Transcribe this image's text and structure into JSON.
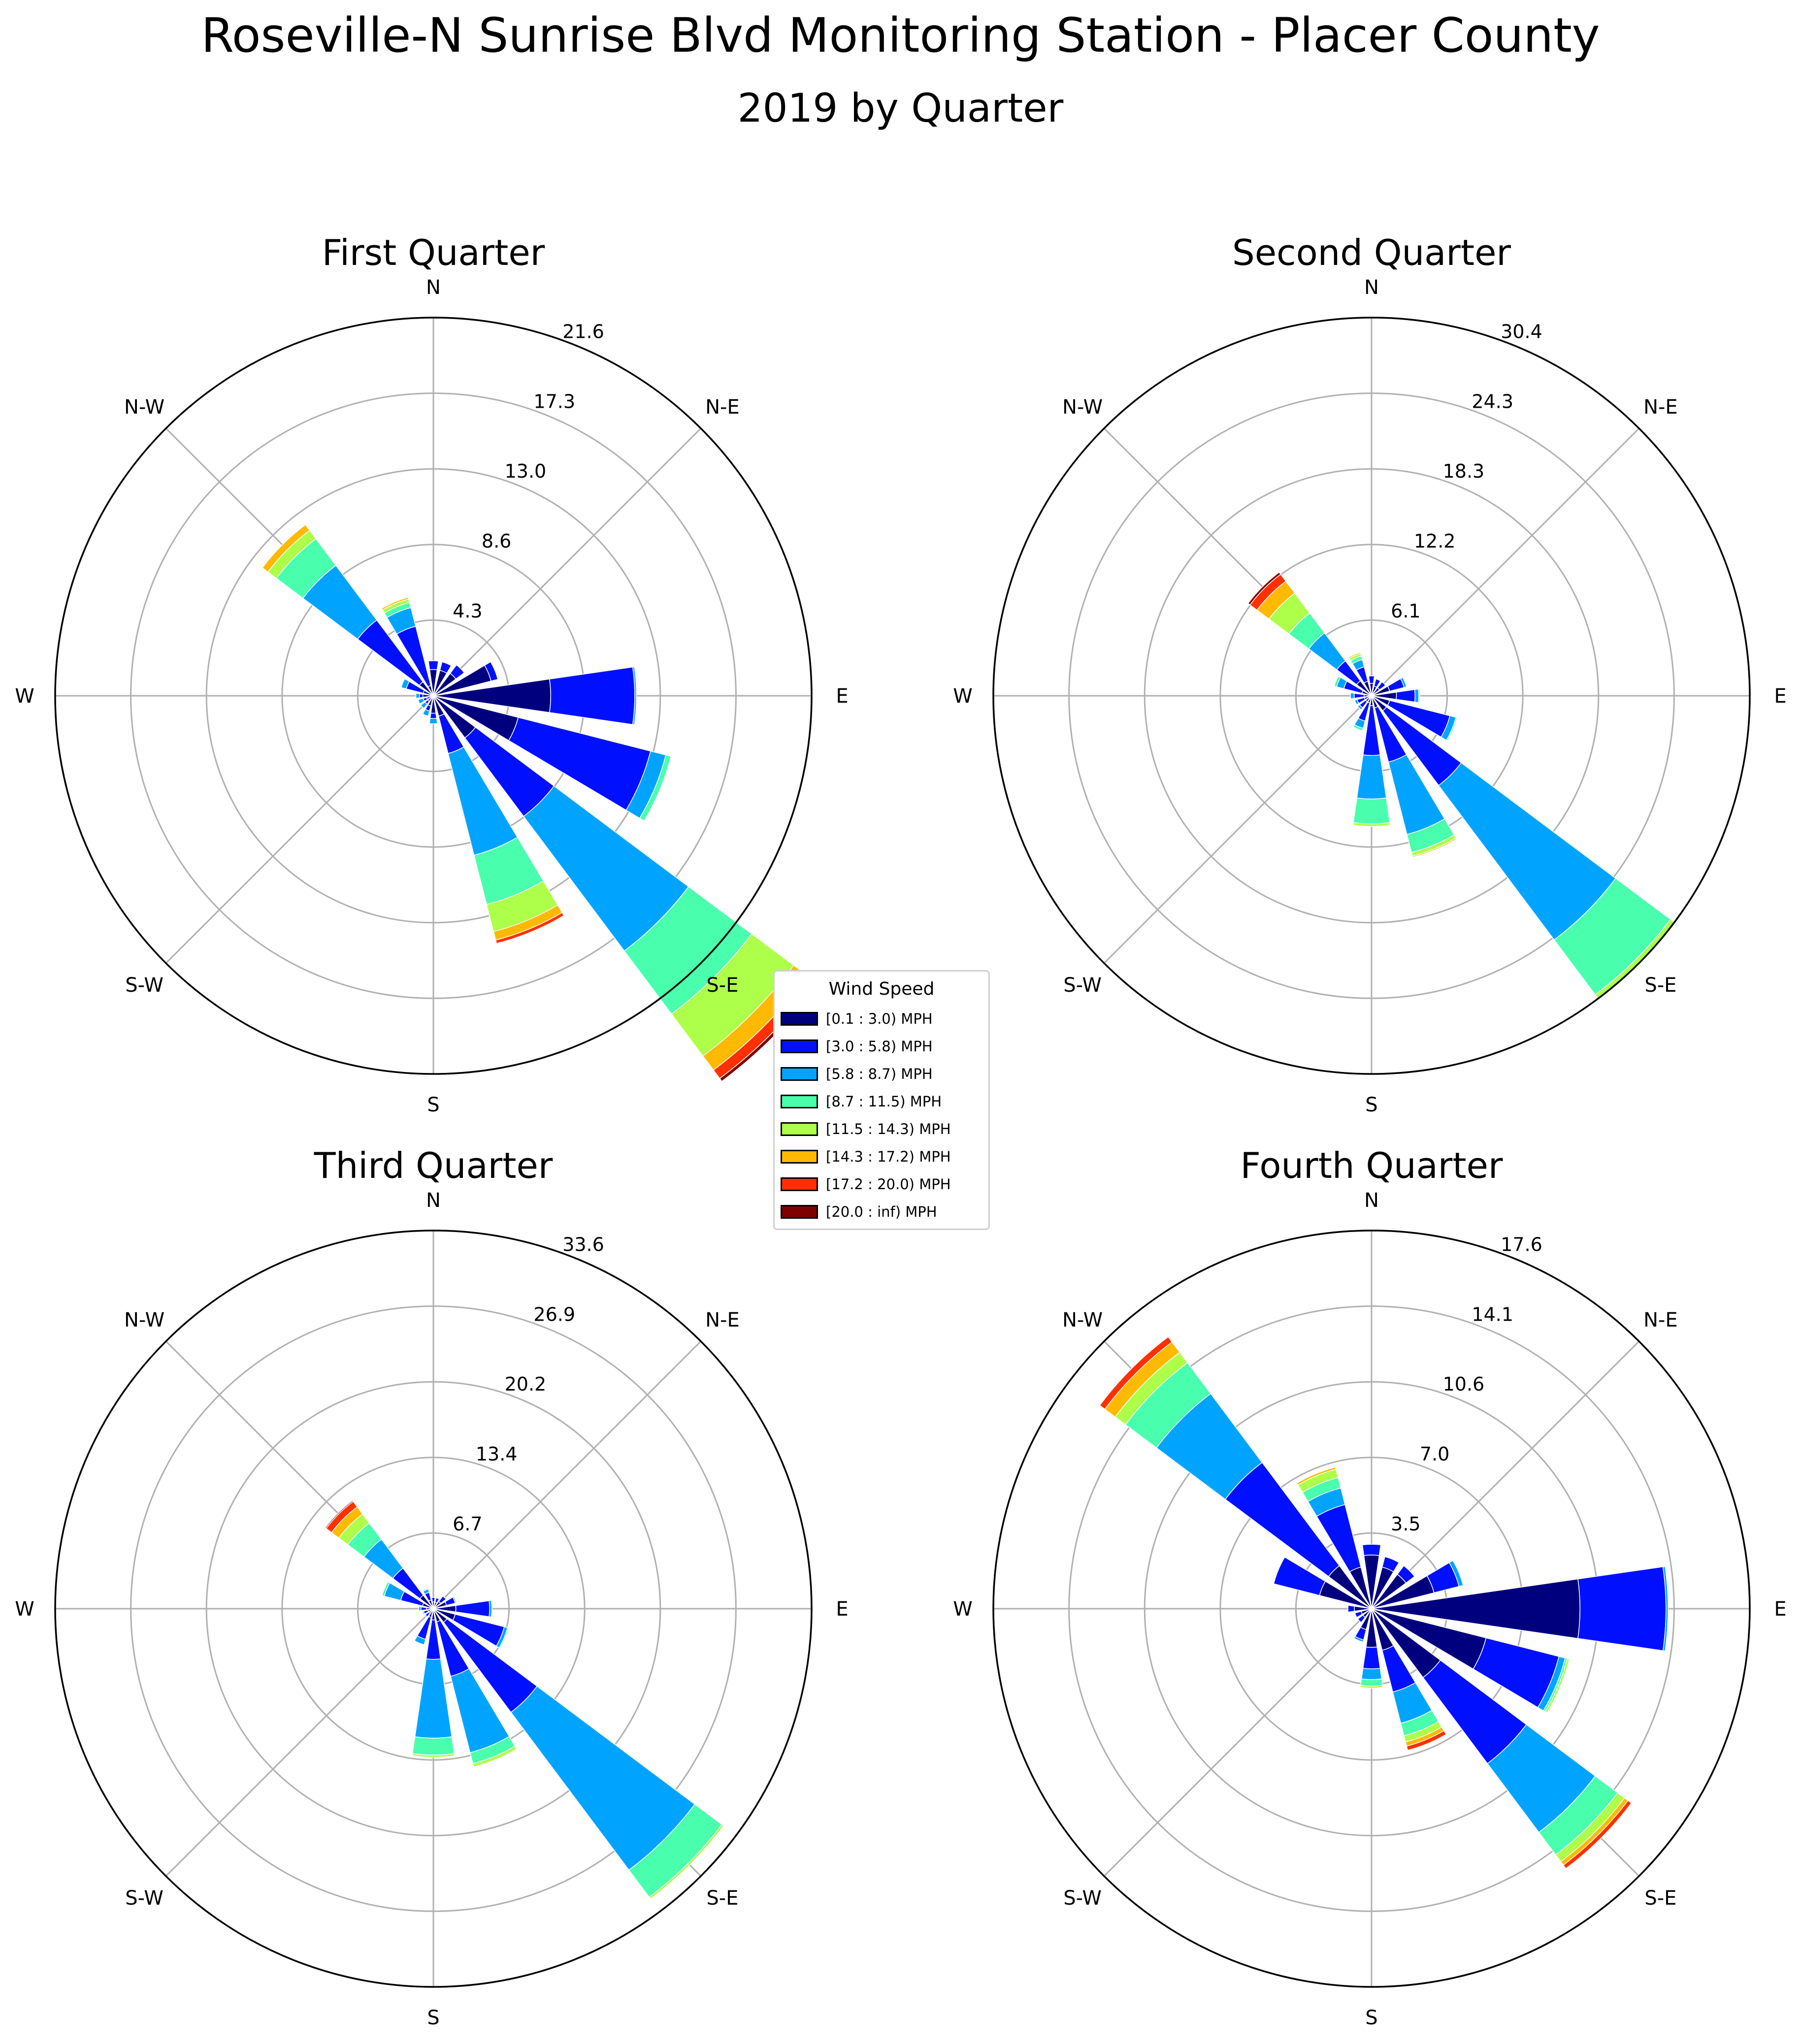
{
  "title": "Roseville-N Sunrise Blvd Monitoring Station - Placer County",
  "subtitle": "2019 by Quarter",
  "legend": {
    "title": "Wind Speed",
    "entries": [
      {
        "label": "[0.1 : 3.0) MPH",
        "color": "#00007f"
      },
      {
        "label": "[3.0 : 5.8) MPH",
        "color": "#0010ff"
      },
      {
        "label": "[5.8 : 8.7) MPH",
        "color": "#00a4ff"
      },
      {
        "label": "[8.7 : 11.5) MPH",
        "color": "#49ffad"
      },
      {
        "label": "[11.5 : 14.3) MPH",
        "color": "#adff49"
      },
      {
        "label": "[14.3 : 17.2) MPH",
        "color": "#ffb900"
      },
      {
        "label": "[17.2 : 20.0) MPH",
        "color": "#ff3000"
      },
      {
        "label": "[20.0 : inf) MPH",
        "color": "#7f0000"
      }
    ]
  },
  "chart_data": [
    {
      "type": "windrose",
      "title": "First Quarter",
      "directions": [
        "N",
        "NNE",
        "NE",
        "ENE",
        "E",
        "ESE",
        "SE",
        "SSE",
        "S",
        "SSW",
        "SW",
        "WSW",
        "W",
        "WNW",
        "NW",
        "NNW"
      ],
      "compass_labels": [
        "N",
        "N-E",
        "E",
        "S-E",
        "S",
        "S-W",
        "W",
        "N-W"
      ],
      "radial_ticks": [
        "4.3",
        "8.6",
        "13.0",
        "17.3",
        "21.6"
      ],
      "rmax": 21.6,
      "series": [
        {
          "name": "[0.1 : 3.0) MPH",
          "values": [
            1.5,
            1.5,
            1.6,
            3.4,
            6.7,
            5.0,
            3.0,
            1.2,
            1.0,
            0.6,
            0.4,
            0.4,
            0.6,
            0.6,
            1.0,
            0.6
          ]
        },
        {
          "name": "[3.0 : 5.8) MPH",
          "values": [
            0.5,
            0.5,
            0.6,
            0.4,
            4.8,
            7.8,
            5.6,
            2.2,
            0.3,
            0.3,
            0.2,
            0.2,
            0.2,
            1.0,
            4.4,
            3.5
          ]
        },
        {
          "name": "[5.8 : 8.7) MPH",
          "values": [
            0,
            0,
            0,
            0,
            0.1,
            0.9,
            9.6,
            6.0,
            0.3,
            0.3,
            0.3,
            0.3,
            0.2,
            0.3,
            3.9,
            1.1
          ]
        },
        {
          "name": "[8.7 : 11.5) MPH",
          "values": [
            0,
            0,
            0,
            0,
            0,
            0.3,
            4.5,
            2.9,
            0,
            0,
            0,
            0,
            0,
            0,
            1.9,
            0.3
          ]
        },
        {
          "name": "[11.5 : 14.3) MPH",
          "values": [
            0,
            0,
            0,
            0,
            0,
            0,
            3.0,
            1.6,
            0,
            0,
            0,
            0,
            0,
            0,
            0.6,
            0.2
          ]
        },
        {
          "name": "[14.3 : 17.2) MPH",
          "values": [
            0,
            0,
            0,
            0,
            0,
            0,
            1.0,
            0.5,
            0,
            0,
            0,
            0,
            0,
            0,
            0.4,
            0.1
          ]
        },
        {
          "name": "[17.2 : 20.0) MPH",
          "values": [
            0,
            0,
            0,
            0,
            0,
            0,
            0.6,
            0.2,
            0,
            0,
            0,
            0,
            0,
            0,
            0,
            0
          ]
        },
        {
          "name": "[20.0 : inf) MPH",
          "values": [
            0,
            0,
            0,
            0,
            0,
            0,
            0.2,
            0,
            0,
            0,
            0,
            0,
            0,
            0,
            0,
            0
          ]
        }
      ]
    },
    {
      "type": "windrose",
      "title": "Second Quarter",
      "directions": [
        "N",
        "NNE",
        "NE",
        "ENE",
        "E",
        "ESE",
        "SE",
        "SSE",
        "S",
        "SSW",
        "SW",
        "WSW",
        "W",
        "WNW",
        "NW",
        "NNW"
      ],
      "compass_labels": [
        "N",
        "N-E",
        "E",
        "S-E",
        "S",
        "S-W",
        "W",
        "N-W"
      ],
      "radial_ticks": [
        "6.1",
        "12.2",
        "18.3",
        "24.3",
        "30.4"
      ],
      "rmax": 30.4,
      "series": [
        {
          "name": "[0.1 : 3.0) MPH",
          "values": [
            1.0,
            0.8,
            0.8,
            1.5,
            2.0,
            1.5,
            1.5,
            1.0,
            0.8,
            0.6,
            0.6,
            0.6,
            0.6,
            0.8,
            1.5,
            1.2
          ]
        },
        {
          "name": "[3.0 : 5.8) MPH",
          "values": [
            0.6,
            0.6,
            0.6,
            1.2,
            1.5,
            5.0,
            7.5,
            4.5,
            4.0,
            1.5,
            0.6,
            0.6,
            0.8,
            1.5,
            2.0,
            1.2
          ]
        },
        {
          "name": "[5.8 : 8.7) MPH",
          "values": [
            0,
            0,
            0,
            0.2,
            0.3,
            0.5,
            15.5,
            6.0,
            3.5,
            0.6,
            0.2,
            0.2,
            0.3,
            0.6,
            2.8,
            0.6
          ]
        },
        {
          "name": "[8.7 : 11.5) MPH",
          "values": [
            0,
            0,
            0,
            0,
            0.1,
            0.1,
            5.5,
            1.5,
            2.0,
            0.2,
            0,
            0,
            0,
            0.2,
            2.0,
            0.3
          ]
        },
        {
          "name": "[11.5 : 14.3) MPH",
          "values": [
            0,
            0,
            0,
            0,
            0,
            0,
            0.5,
            0.3,
            0.2,
            0,
            0,
            0,
            0,
            0,
            2.0,
            0.2
          ]
        },
        {
          "name": "[14.3 : 17.2) MPH",
          "values": [
            0,
            0,
            0,
            0,
            0,
            0,
            0,
            0.1,
            0,
            0,
            0,
            0,
            0,
            0,
            1.2,
            0.1
          ]
        },
        {
          "name": "[17.2 : 20.0) MPH",
          "values": [
            0,
            0,
            0,
            0,
            0,
            0,
            0,
            0,
            0,
            0,
            0,
            0,
            0,
            0,
            0.7,
            0
          ]
        },
        {
          "name": "[20.0 : inf) MPH",
          "values": [
            0,
            0,
            0,
            0,
            0,
            0,
            0,
            0,
            0,
            0,
            0,
            0,
            0,
            0,
            0.2,
            0
          ]
        }
      ]
    },
    {
      "type": "windrose",
      "title": "Third Quarter",
      "directions": [
        "N",
        "NNE",
        "NE",
        "ENE",
        "E",
        "ESE",
        "SE",
        "SSE",
        "S",
        "SSW",
        "SW",
        "WSW",
        "W",
        "WNW",
        "NW",
        "NNW"
      ],
      "compass_labels": [
        "N",
        "N-E",
        "E",
        "S-E",
        "S",
        "S-W",
        "W",
        "N-W"
      ],
      "radial_ticks": [
        "6.7",
        "13.4",
        "20.2",
        "26.9",
        "33.6"
      ],
      "rmax": 33.6,
      "series": [
        {
          "name": "[0.1 : 3.0) MPH",
          "values": [
            0.6,
            0.6,
            0.8,
            1.2,
            2.0,
            2.0,
            1.5,
            1.2,
            1.0,
            0.8,
            0.5,
            0.5,
            0.6,
            1.0,
            1.5,
            0.8
          ]
        },
        {
          "name": "[3.0 : 5.8) MPH",
          "values": [
            0.4,
            0.4,
            0.6,
            0.8,
            3.0,
            4.5,
            10.0,
            5.0,
            3.5,
            2.0,
            0.4,
            0.4,
            0.5,
            2.0,
            3.0,
            0.7
          ]
        },
        {
          "name": "[5.8 : 8.7) MPH",
          "values": [
            0,
            0,
            0,
            0.1,
            0.2,
            0.3,
            17.5,
            7.0,
            7.0,
            0.5,
            0.1,
            0.1,
            0.2,
            1.5,
            3.2,
            0.3
          ]
        },
        {
          "name": "[8.7 : 11.5) MPH",
          "values": [
            0,
            0,
            0,
            0,
            0,
            0.1,
            3.0,
            1.0,
            1.5,
            0,
            0,
            0,
            0,
            0.2,
            1.8,
            0.1
          ]
        },
        {
          "name": "[11.5 : 14.3) MPH",
          "values": [
            0,
            0,
            0,
            0,
            0,
            0,
            0.2,
            0.3,
            0.2,
            0,
            0,
            0,
            0,
            0,
            1.0,
            0
          ]
        },
        {
          "name": "[14.3 : 17.2) MPH",
          "values": [
            0,
            0,
            0,
            0,
            0,
            0,
            0,
            0,
            0,
            0,
            0,
            0,
            0,
            0,
            0.8,
            0
          ]
        },
        {
          "name": "[17.2 : 20.0) MPH",
          "values": [
            0,
            0,
            0,
            0,
            0,
            0,
            0,
            0,
            0,
            0,
            0,
            0,
            0,
            0,
            0.6,
            0
          ]
        },
        {
          "name": "[20.0 : inf) MPH",
          "values": [
            0,
            0,
            0,
            0,
            0,
            0,
            0,
            0,
            0,
            0,
            0,
            0,
            0,
            0,
            0.1,
            0
          ]
        }
      ]
    },
    {
      "type": "windrose",
      "title": "Fourth Quarter",
      "directions": [
        "N",
        "NNE",
        "NE",
        "ENE",
        "E",
        "ESE",
        "SE",
        "SSE",
        "S",
        "SSW",
        "SW",
        "WSW",
        "W",
        "WNW",
        "NW",
        "NNW"
      ],
      "compass_labels": [
        "N",
        "N-E",
        "E",
        "S-E",
        "S",
        "S-W",
        "W",
        "N-W"
      ],
      "radial_ticks": [
        "3.5",
        "7.0",
        "10.6",
        "14.1",
        "17.6"
      ],
      "rmax": 17.6,
      "series": [
        {
          "name": "[0.1 : 3.0) MPH",
          "values": [
            2.5,
            2.0,
            2.0,
            3.0,
            9.7,
            5.5,
            4.0,
            2.0,
            1.8,
            1.0,
            0.5,
            0.5,
            0.8,
            2.5,
            2.5,
            2.0
          ]
        },
        {
          "name": "[3.0 : 5.8) MPH",
          "values": [
            0.5,
            0.5,
            0.5,
            1.2,
            4.0,
            3.5,
            5.0,
            2.0,
            1.0,
            0.5,
            0.3,
            0.3,
            0.3,
            2.2,
            6.0,
            3.0
          ]
        },
        {
          "name": "[5.8 : 8.7) MPH",
          "values": [
            0,
            0,
            0,
            0.2,
            0.1,
            0.3,
            4.0,
            1.5,
            0.5,
            0.1,
            0,
            0,
            0,
            0,
            4.0,
            0.8
          ]
        },
        {
          "name": "[8.7 : 11.5) MPH",
          "values": [
            0,
            0,
            0,
            0,
            0,
            0.1,
            1.3,
            0.6,
            0.3,
            0,
            0,
            0,
            0,
            0,
            1.8,
            0.5
          ]
        },
        {
          "name": "[11.5 : 14.3) MPH",
          "values": [
            0,
            0,
            0,
            0,
            0,
            0.1,
            0.4,
            0.3,
            0.1,
            0,
            0,
            0,
            0,
            0,
            0.6,
            0.4
          ]
        },
        {
          "name": "[14.3 : 17.2) MPH",
          "values": [
            0,
            0,
            0,
            0,
            0,
            0,
            0.2,
            0.2,
            0,
            0,
            0,
            0,
            0,
            0,
            0.6,
            0.1
          ]
        },
        {
          "name": "[17.2 : 20.0) MPH",
          "values": [
            0,
            0,
            0,
            0,
            0,
            0,
            0.2,
            0.2,
            0,
            0,
            0,
            0,
            0,
            0,
            0.3,
            0
          ]
        },
        {
          "name": "[20.0 : inf) MPH",
          "values": [
            0,
            0,
            0,
            0,
            0,
            0,
            0,
            0,
            0,
            0,
            0,
            0,
            0,
            0,
            0,
            0
          ]
        }
      ]
    }
  ]
}
